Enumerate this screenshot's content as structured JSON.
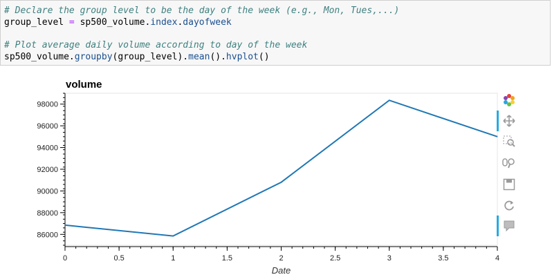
{
  "code_cell": {
    "line1": "# Declare the group level to be the day of the week (e.g., Mon, Tues,...)",
    "line2_a": "group_level ",
    "line2_op": "=",
    "line2_b": " sp500_volume.",
    "line2_attr1": "index",
    "line2_c": ".",
    "line2_attr2": "dayofweek",
    "line3": "# Plot average daily volume according to day of the week",
    "line4_a": "sp500_volume.",
    "line4_attr1": "groupby",
    "line4_b": "(group_level).",
    "line4_attr2": "mean",
    "line4_c": "().",
    "line4_attr3": "hvplot",
    "line4_d": "()"
  },
  "toolbar": {
    "icons": [
      "bokeh-logo-icon",
      "pan-icon",
      "box-zoom-icon",
      "wheel-zoom-icon",
      "save-icon",
      "reset-icon",
      "hover-icon"
    ]
  },
  "chart_data": {
    "type": "line",
    "title": "volume",
    "xlabel": "Date",
    "ylabel": "",
    "x": [
      0,
      1,
      2,
      3,
      4
    ],
    "series": [
      {
        "values": [
          86850,
          85850,
          90800,
          98350,
          95000
        ],
        "color": "#1f77b4"
      }
    ],
    "xlim": [
      0,
      4
    ],
    "ylim": [
      85000,
      99000
    ],
    "xticks": [
      "0",
      "0.5",
      "1",
      "1.5",
      "2",
      "2.5",
      "3",
      "3.5",
      "4"
    ],
    "yticks": [
      "86000",
      "88000",
      "90000",
      "92000",
      "94000",
      "96000",
      "98000"
    ],
    "grid": false
  }
}
